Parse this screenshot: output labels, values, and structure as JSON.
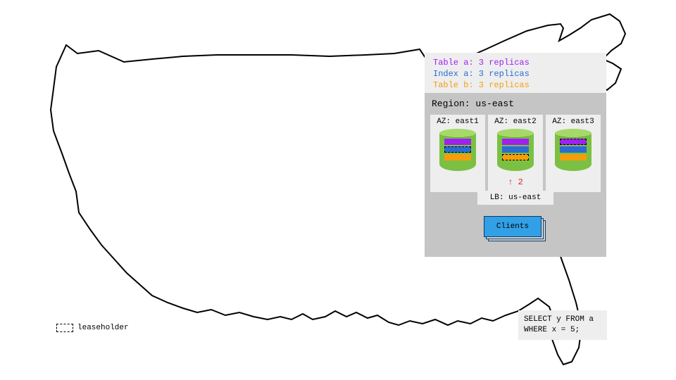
{
  "colors": {
    "panel_bg_light": "#eeeeee",
    "panel_bg_dark": "#c5c5c5",
    "db_body": "#7bc043",
    "db_top": "#a6d96a",
    "arrow": "#d22222",
    "clients_bg": "#32a0e6",
    "clients_border": "#0b3a68"
  },
  "replica_info": [
    {
      "label": "Table a: 3 replicas",
      "color": "#a020f0"
    },
    {
      "label": "Index a: 3 replicas",
      "color": "#2b6cd4"
    },
    {
      "label": "Table b: 3 replicas",
      "color": "#f59e0b"
    }
  ],
  "region": {
    "title": "Region: us-east",
    "azs": [
      {
        "label": "AZ: east1",
        "slices": [
          {
            "color": "#a020f0",
            "leaseholder": false
          },
          {
            "color": "#2b6cd4",
            "leaseholder": true
          },
          {
            "color": "#f59e0b",
            "leaseholder": false
          }
        ]
      },
      {
        "label": "AZ: east2",
        "slices": [
          {
            "color": "#a020f0",
            "leaseholder": false
          },
          {
            "color": "#2b6cd4",
            "leaseholder": false
          },
          {
            "color": "#f59e0b",
            "leaseholder": true
          }
        ],
        "arrow_label": "2"
      },
      {
        "label": "AZ: east3",
        "slices": [
          {
            "color": "#a020f0",
            "leaseholder": true
          },
          {
            "color": "#2b6cd4",
            "leaseholder": false
          },
          {
            "color": "#f59e0b",
            "leaseholder": false
          }
        ]
      }
    ],
    "lb_label": "LB: us-east",
    "clients_label": "Clients"
  },
  "sql": "SELECT y FROM a\nWHERE x = 5;",
  "legend_label": "leaseholder"
}
